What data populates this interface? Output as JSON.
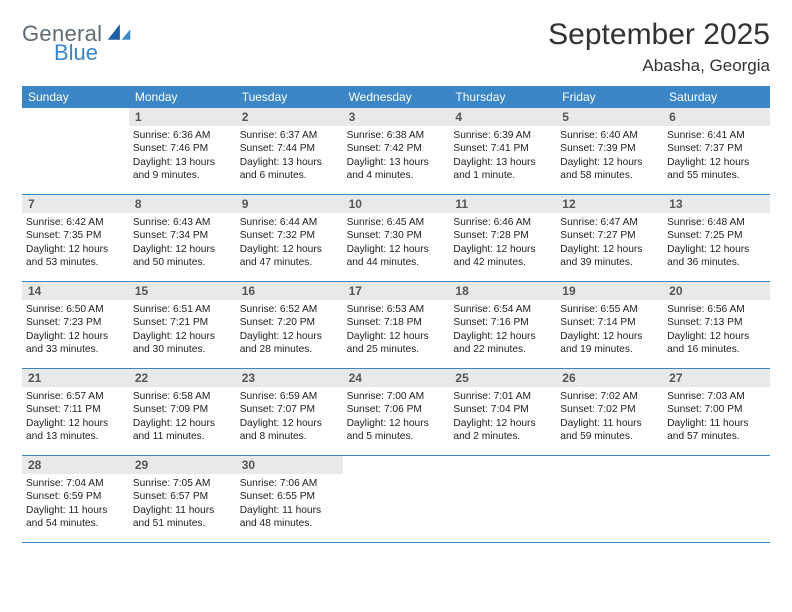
{
  "brand": {
    "word1": "General",
    "word2": "Blue",
    "logo_color": "#1e5fa3"
  },
  "header": {
    "month_title": "September 2025",
    "location": "Abasha, Georgia"
  },
  "colors": {
    "header_bar": "#3b86c6",
    "daynum_bg": "#e9e9e9",
    "week_border": "#3b86c6",
    "text": "#222222",
    "title_text": "#333333"
  },
  "weekdays": [
    "Sunday",
    "Monday",
    "Tuesday",
    "Wednesday",
    "Thursday",
    "Friday",
    "Saturday"
  ],
  "weeks": [
    [
      null,
      {
        "n": "1",
        "sunrise": "Sunrise: 6:36 AM",
        "sunset": "Sunset: 7:46 PM",
        "dl1": "Daylight: 13 hours",
        "dl2": "and 9 minutes."
      },
      {
        "n": "2",
        "sunrise": "Sunrise: 6:37 AM",
        "sunset": "Sunset: 7:44 PM",
        "dl1": "Daylight: 13 hours",
        "dl2": "and 6 minutes."
      },
      {
        "n": "3",
        "sunrise": "Sunrise: 6:38 AM",
        "sunset": "Sunset: 7:42 PM",
        "dl1": "Daylight: 13 hours",
        "dl2": "and 4 minutes."
      },
      {
        "n": "4",
        "sunrise": "Sunrise: 6:39 AM",
        "sunset": "Sunset: 7:41 PM",
        "dl1": "Daylight: 13 hours",
        "dl2": "and 1 minute."
      },
      {
        "n": "5",
        "sunrise": "Sunrise: 6:40 AM",
        "sunset": "Sunset: 7:39 PM",
        "dl1": "Daylight: 12 hours",
        "dl2": "and 58 minutes."
      },
      {
        "n": "6",
        "sunrise": "Sunrise: 6:41 AM",
        "sunset": "Sunset: 7:37 PM",
        "dl1": "Daylight: 12 hours",
        "dl2": "and 55 minutes."
      }
    ],
    [
      {
        "n": "7",
        "sunrise": "Sunrise: 6:42 AM",
        "sunset": "Sunset: 7:35 PM",
        "dl1": "Daylight: 12 hours",
        "dl2": "and 53 minutes."
      },
      {
        "n": "8",
        "sunrise": "Sunrise: 6:43 AM",
        "sunset": "Sunset: 7:34 PM",
        "dl1": "Daylight: 12 hours",
        "dl2": "and 50 minutes."
      },
      {
        "n": "9",
        "sunrise": "Sunrise: 6:44 AM",
        "sunset": "Sunset: 7:32 PM",
        "dl1": "Daylight: 12 hours",
        "dl2": "and 47 minutes."
      },
      {
        "n": "10",
        "sunrise": "Sunrise: 6:45 AM",
        "sunset": "Sunset: 7:30 PM",
        "dl1": "Daylight: 12 hours",
        "dl2": "and 44 minutes."
      },
      {
        "n": "11",
        "sunrise": "Sunrise: 6:46 AM",
        "sunset": "Sunset: 7:28 PM",
        "dl1": "Daylight: 12 hours",
        "dl2": "and 42 minutes."
      },
      {
        "n": "12",
        "sunrise": "Sunrise: 6:47 AM",
        "sunset": "Sunset: 7:27 PM",
        "dl1": "Daylight: 12 hours",
        "dl2": "and 39 minutes."
      },
      {
        "n": "13",
        "sunrise": "Sunrise: 6:48 AM",
        "sunset": "Sunset: 7:25 PM",
        "dl1": "Daylight: 12 hours",
        "dl2": "and 36 minutes."
      }
    ],
    [
      {
        "n": "14",
        "sunrise": "Sunrise: 6:50 AM",
        "sunset": "Sunset: 7:23 PM",
        "dl1": "Daylight: 12 hours",
        "dl2": "and 33 minutes."
      },
      {
        "n": "15",
        "sunrise": "Sunrise: 6:51 AM",
        "sunset": "Sunset: 7:21 PM",
        "dl1": "Daylight: 12 hours",
        "dl2": "and 30 minutes."
      },
      {
        "n": "16",
        "sunrise": "Sunrise: 6:52 AM",
        "sunset": "Sunset: 7:20 PM",
        "dl1": "Daylight: 12 hours",
        "dl2": "and 28 minutes."
      },
      {
        "n": "17",
        "sunrise": "Sunrise: 6:53 AM",
        "sunset": "Sunset: 7:18 PM",
        "dl1": "Daylight: 12 hours",
        "dl2": "and 25 minutes."
      },
      {
        "n": "18",
        "sunrise": "Sunrise: 6:54 AM",
        "sunset": "Sunset: 7:16 PM",
        "dl1": "Daylight: 12 hours",
        "dl2": "and 22 minutes."
      },
      {
        "n": "19",
        "sunrise": "Sunrise: 6:55 AM",
        "sunset": "Sunset: 7:14 PM",
        "dl1": "Daylight: 12 hours",
        "dl2": "and 19 minutes."
      },
      {
        "n": "20",
        "sunrise": "Sunrise: 6:56 AM",
        "sunset": "Sunset: 7:13 PM",
        "dl1": "Daylight: 12 hours",
        "dl2": "and 16 minutes."
      }
    ],
    [
      {
        "n": "21",
        "sunrise": "Sunrise: 6:57 AM",
        "sunset": "Sunset: 7:11 PM",
        "dl1": "Daylight: 12 hours",
        "dl2": "and 13 minutes."
      },
      {
        "n": "22",
        "sunrise": "Sunrise: 6:58 AM",
        "sunset": "Sunset: 7:09 PM",
        "dl1": "Daylight: 12 hours",
        "dl2": "and 11 minutes."
      },
      {
        "n": "23",
        "sunrise": "Sunrise: 6:59 AM",
        "sunset": "Sunset: 7:07 PM",
        "dl1": "Daylight: 12 hours",
        "dl2": "and 8 minutes."
      },
      {
        "n": "24",
        "sunrise": "Sunrise: 7:00 AM",
        "sunset": "Sunset: 7:06 PM",
        "dl1": "Daylight: 12 hours",
        "dl2": "and 5 minutes."
      },
      {
        "n": "25",
        "sunrise": "Sunrise: 7:01 AM",
        "sunset": "Sunset: 7:04 PM",
        "dl1": "Daylight: 12 hours",
        "dl2": "and 2 minutes."
      },
      {
        "n": "26",
        "sunrise": "Sunrise: 7:02 AM",
        "sunset": "Sunset: 7:02 PM",
        "dl1": "Daylight: 11 hours",
        "dl2": "and 59 minutes."
      },
      {
        "n": "27",
        "sunrise": "Sunrise: 7:03 AM",
        "sunset": "Sunset: 7:00 PM",
        "dl1": "Daylight: 11 hours",
        "dl2": "and 57 minutes."
      }
    ],
    [
      {
        "n": "28",
        "sunrise": "Sunrise: 7:04 AM",
        "sunset": "Sunset: 6:59 PM",
        "dl1": "Daylight: 11 hours",
        "dl2": "and 54 minutes."
      },
      {
        "n": "29",
        "sunrise": "Sunrise: 7:05 AM",
        "sunset": "Sunset: 6:57 PM",
        "dl1": "Daylight: 11 hours",
        "dl2": "and 51 minutes."
      },
      {
        "n": "30",
        "sunrise": "Sunrise: 7:06 AM",
        "sunset": "Sunset: 6:55 PM",
        "dl1": "Daylight: 11 hours",
        "dl2": "and 48 minutes."
      },
      null,
      null,
      null,
      null
    ]
  ]
}
